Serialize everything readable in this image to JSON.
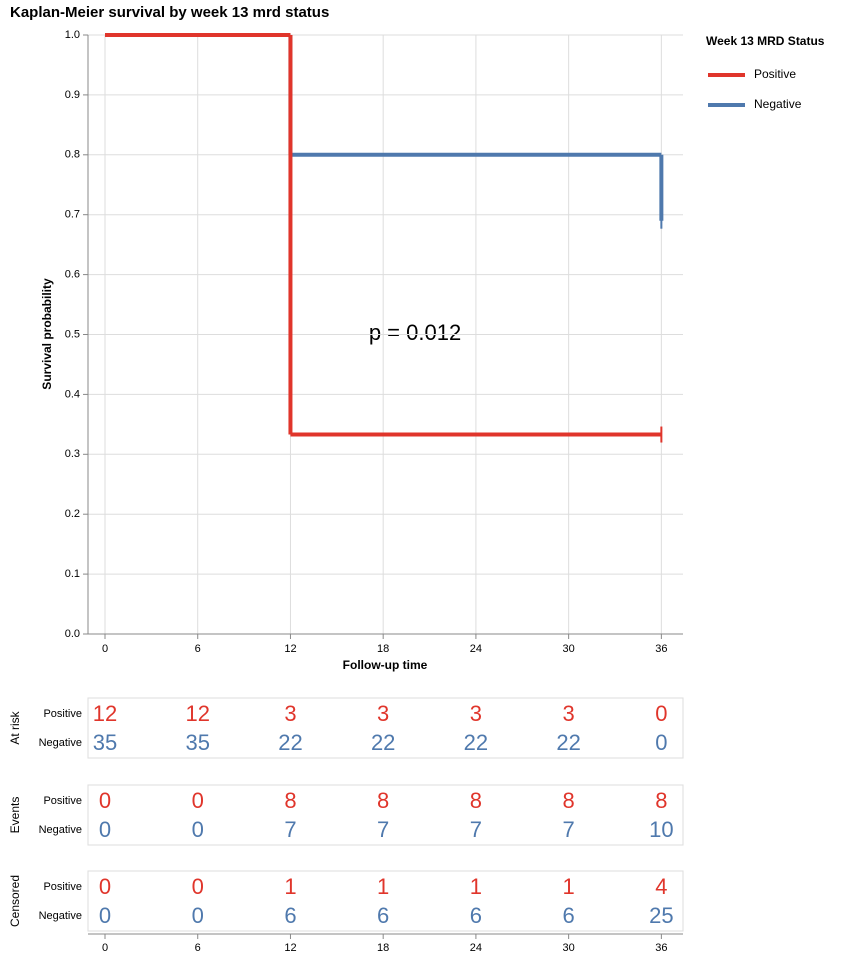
{
  "chart_data": {
    "type": "km",
    "title": "Kaplan-Meier survival by week 13 mrd status",
    "xlabel": "Follow-up time",
    "ylabel": "Survival probability",
    "annotation": "p = 0.012",
    "legend_title": "Week 13 MRD Status",
    "x": [
      0,
      12,
      36
    ],
    "series": [
      {
        "name": "Positive",
        "color": "#e0352b",
        "values": [
          1.0,
          0.333,
          0.333
        ]
      },
      {
        "name": "Negative",
        "color": "#4f79ad",
        "values": [
          1.0,
          0.8,
          0.69
        ]
      }
    ],
    "xlim": [
      -1.1,
      37.4
    ],
    "xticks": [
      0,
      6,
      12,
      18,
      24,
      30,
      36
    ],
    "ylim": [
      0,
      1
    ],
    "yticks": [
      {
        "value": 0,
        "label": "0.0"
      },
      0.1,
      0.2,
      0.3,
      0.4,
      0.5,
      0.6,
      0.7,
      0.8,
      0.9,
      {
        "value": 1,
        "label": "1.0"
      }
    ],
    "grid": true
  },
  "tables": [
    {
      "title": "At risk",
      "rows": [
        {
          "label": "Positive",
          "values": [
            12,
            12,
            3,
            3,
            3,
            3,
            0
          ]
        },
        {
          "label": "Negative",
          "values": [
            35,
            35,
            22,
            22,
            22,
            22,
            0
          ]
        }
      ]
    },
    {
      "title": "Events",
      "rows": [
        {
          "label": "Positive",
          "values": [
            0,
            0,
            8,
            8,
            8,
            8,
            8
          ]
        },
        {
          "label": "Negative",
          "values": [
            0,
            0,
            7,
            7,
            7,
            7,
            10
          ]
        }
      ]
    },
    {
      "title": "Censored",
      "rows": [
        {
          "label": "Positive",
          "values": [
            0,
            0,
            1,
            1,
            1,
            1,
            4
          ]
        },
        {
          "label": "Negative",
          "values": [
            0,
            0,
            6,
            6,
            6,
            6,
            25
          ]
        }
      ]
    }
  ]
}
